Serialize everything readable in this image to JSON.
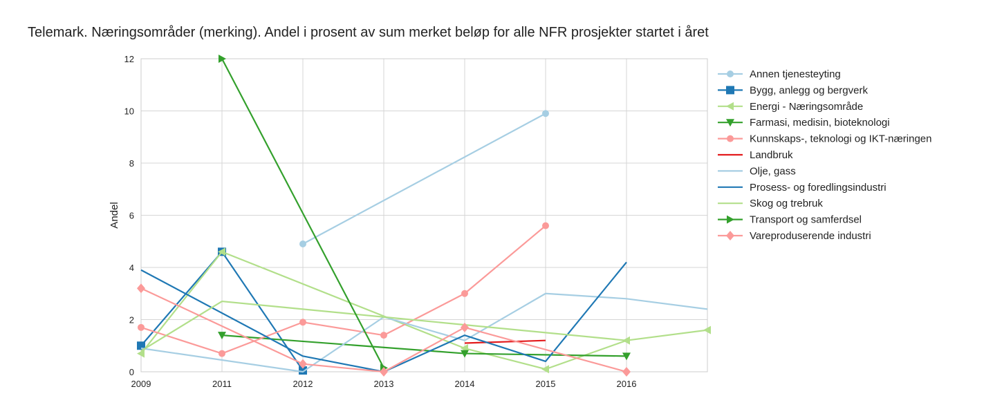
{
  "chart_data": {
    "type": "line",
    "title": "Telemark. Næringsområder (merking). Andel i prosent av sum merket beløp for alle NFR prosjekter startet i året",
    "xlabel": "",
    "ylabel": "Andel",
    "x_ticks": [
      2009,
      2011,
      2012,
      2013,
      2014,
      2015,
      2016
    ],
    "xlim": [
      0,
      7
    ],
    "ylim": [
      0,
      12
    ],
    "y_ticks": [
      0,
      2,
      4,
      6,
      8,
      10,
      12
    ],
    "grid": true,
    "legend_position": "right-outside",
    "series": [
      {
        "name": "Annen tjenesteyting",
        "color": "#a6cee3",
        "marker": "circle",
        "points": [
          [
            2,
            4.9
          ],
          [
            5,
            9.9
          ]
        ]
      },
      {
        "name": "Bygg, anlegg og bergverk",
        "color": "#1f78b4",
        "marker": "square",
        "points": [
          [
            0,
            1.0
          ],
          [
            1,
            4.6
          ],
          [
            2,
            0.05
          ]
        ]
      },
      {
        "name": "Energi - Næringsområde",
        "color": "#b2df8a",
        "marker": "triangle-left",
        "points": [
          [
            0,
            0.7
          ],
          [
            1,
            4.6
          ],
          [
            4,
            0.9
          ],
          [
            5,
            0.1
          ],
          [
            6,
            1.2
          ],
          [
            7,
            1.6
          ]
        ]
      },
      {
        "name": "Farmasi, medisin, bioteknologi",
        "color": "#33a02c",
        "marker": "triangle-down",
        "points": [
          [
            1,
            1.4
          ],
          [
            4,
            0.7
          ],
          [
            6,
            0.6
          ]
        ]
      },
      {
        "name": "Kunnskaps-, teknologi og IKT-næringen",
        "color": "#fb9a99",
        "marker": "circle",
        "points": [
          [
            0,
            1.7
          ],
          [
            1,
            0.7
          ],
          [
            2,
            1.9
          ],
          [
            3,
            1.4
          ],
          [
            4,
            3.0
          ],
          [
            5,
            5.6
          ]
        ]
      },
      {
        "name": "Landbruk",
        "color": "#e31a1c",
        "marker": "none",
        "points": [
          [
            4,
            1.1
          ],
          [
            5,
            1.2
          ]
        ]
      },
      {
        "name": "Olje, gass",
        "color": "#a6cee3",
        "marker": "none",
        "points": [
          [
            0,
            0.9
          ],
          [
            2,
            0.0
          ],
          [
            3,
            2.1
          ],
          [
            4,
            1.2
          ],
          [
            5,
            3.0
          ],
          [
            6,
            2.8
          ],
          [
            7,
            2.4
          ]
        ]
      },
      {
        "name": "Prosess- og foredlingsindustri",
        "color": "#1f78b4",
        "marker": "none",
        "points": [
          [
            0,
            3.9
          ],
          [
            2,
            0.6
          ],
          [
            3,
            0.0
          ],
          [
            4,
            1.4
          ],
          [
            5,
            0.4
          ],
          [
            6,
            4.2
          ]
        ]
      },
      {
        "name": "Skog og trebruk",
        "color": "#b2df8a",
        "marker": "none",
        "points": [
          [
            0,
            0.8
          ],
          [
            1,
            2.7
          ],
          [
            3,
            2.1
          ],
          [
            6,
            1.2
          ]
        ]
      },
      {
        "name": "Transport og samferdsel",
        "color": "#33a02c",
        "marker": "triangle-right",
        "points": [
          [
            1,
            12.0
          ],
          [
            3,
            0.15
          ]
        ]
      },
      {
        "name": "Vareproduserende industri",
        "color": "#fb9a99",
        "marker": "diamond",
        "points": [
          [
            0,
            3.2
          ],
          [
            2,
            0.3
          ],
          [
            3,
            0.0
          ],
          [
            4,
            1.7
          ],
          [
            6,
            0.0
          ]
        ]
      }
    ]
  }
}
